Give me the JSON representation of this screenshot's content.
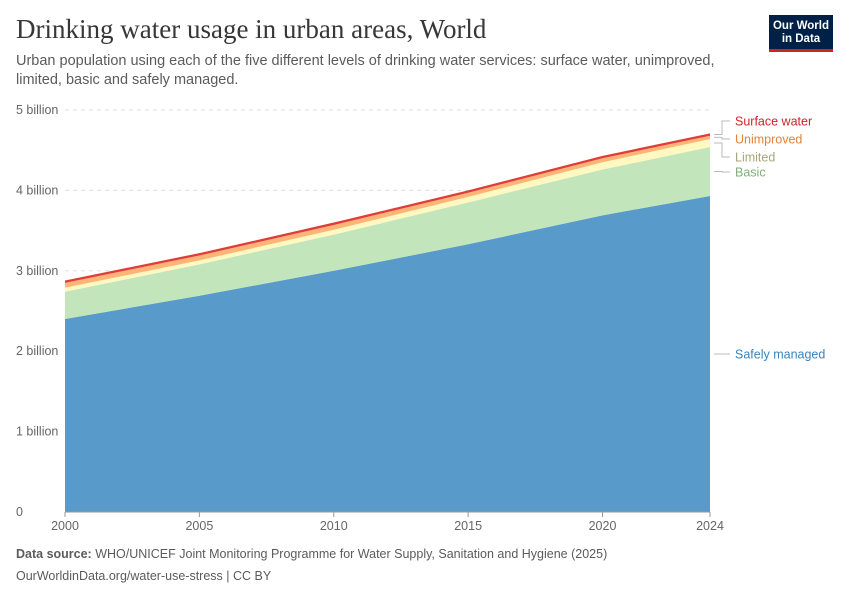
{
  "header": {
    "title": "Drinking water usage in urban areas, World",
    "subtitle": "Urban population using each of the five different levels of drinking water services: surface water, unimproved, limited, basic and safely managed.",
    "logo": "Our World in Data"
  },
  "footer": {
    "source_label": "Data source:",
    "source": "WHO/UNICEF Joint Monitoring Programme for Water Supply, Sanitation and Hygiene (2025)",
    "url": "OurWorldinData.org/water-use-stress | CC BY"
  },
  "chart_data": {
    "type": "area",
    "stacked": true,
    "x": [
      2000,
      2005,
      2010,
      2015,
      2020,
      2024
    ],
    "xticks": [
      "2000",
      "2005",
      "2010",
      "2015",
      "2020",
      "2024"
    ],
    "yticks": [
      "0",
      "1 billion",
      "2 billion",
      "3 billion",
      "4 billion",
      "5 billion"
    ],
    "ylim": [
      0,
      5000000000
    ],
    "xlim": [
      2000,
      2024
    ],
    "grid": "horizontal dashed",
    "legend": "right, inline labels",
    "series": [
      {
        "name": "Safely managed",
        "color": "#4a93c6",
        "values": [
          2400000000.0,
          2690000000.0,
          3000000000.0,
          3330000000.0,
          3690000000.0,
          3930000000.0
        ]
      },
      {
        "name": "Basic",
        "color": "#bde3b5",
        "values": [
          340000000.0,
          390000000.0,
          450000000.0,
          520000000.0,
          570000000.0,
          610000000.0
        ]
      },
      {
        "name": "Limited",
        "color": "#fff7bc",
        "values": [
          50000000.0,
          50000000.0,
          60000000.0,
          70000000.0,
          90000000.0,
          100000000.0
        ]
      },
      {
        "name": "Unimproved",
        "color": "#fdae6b",
        "values": [
          60000000.0,
          60000000.0,
          60000000.0,
          50000000.0,
          50000000.0,
          40000000.0
        ]
      },
      {
        "name": "Surface water",
        "color": "#de2d26",
        "values": [
          30000000.0,
          30000000.0,
          30000000.0,
          30000000.0,
          30000000.0,
          30000000.0
        ]
      }
    ],
    "label_colors": {
      "Safely managed": "#3a84bb",
      "Basic": "#7fb07a",
      "Limited": "#a7a77a",
      "Unimproved": "#e0843b",
      "Surface water": "#d0232a"
    }
  }
}
